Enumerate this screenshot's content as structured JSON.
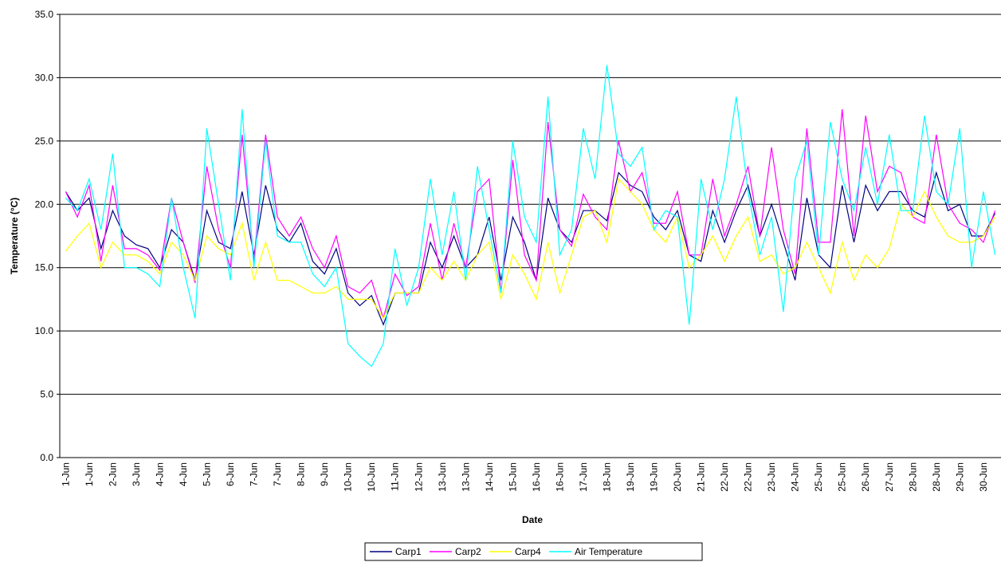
{
  "chart_data": {
    "type": "line",
    "y_label": "Temperature (°C)",
    "x_label": "Date",
    "categories": [
      "1-Jun",
      null,
      "1-Jun",
      null,
      "2-Jun",
      null,
      "3-Jun",
      null,
      "4-Jun",
      null,
      "4-Jun",
      null,
      "5-Jun",
      null,
      "6-Jun",
      null,
      "7-Jun",
      null,
      "7-Jun",
      null,
      "8-Jun",
      null,
      "9-Jun",
      null,
      "10-Jun",
      null,
      "10-Jun",
      null,
      "11-Jun",
      null,
      "12-Jun",
      null,
      "13-Jun",
      null,
      "13-Jun",
      null,
      "14-Jun",
      null,
      "15-Jun",
      null,
      "16-Jun",
      null,
      "16-Jun",
      null,
      "17-Jun",
      null,
      "18-Jun",
      null,
      "19-Jun",
      null,
      "19-Jun",
      null,
      "20-Jun",
      null,
      "21-Jun",
      null,
      "22-Jun",
      null,
      "22-Jun",
      null,
      "23-Jun",
      null,
      "24-Jun",
      null,
      "25-Jun",
      null,
      "25-Jun",
      null,
      "26-Jun",
      null,
      "27-Jun",
      null,
      "28-Jun",
      null,
      "28-Jun",
      null,
      "29-Jun",
      null,
      "30-Jun",
      null
    ],
    "series": [
      {
        "name": "Carp1",
        "color": "#000080",
        "values": [
          21,
          19.5,
          20.5,
          16.5,
          19.5,
          17.5,
          16.8,
          16.5,
          15,
          18,
          17,
          14,
          19.5,
          17,
          16.5,
          21,
          16,
          21.5,
          18,
          17,
          18.5,
          15.5,
          14.5,
          16.5,
          13,
          12,
          12.8,
          10.5,
          13,
          13,
          13,
          17,
          15,
          17.5,
          15,
          16,
          19,
          14,
          19,
          17,
          14,
          20.5,
          18,
          17,
          19.5,
          19.5,
          18.7,
          22.5,
          21.5,
          21,
          19,
          18,
          19.5,
          16,
          15.5,
          19.5,
          17,
          19.5,
          21.5,
          17.5,
          20,
          17,
          14,
          20.5,
          16,
          15,
          21.5,
          17,
          21.5,
          19.5,
          21,
          21,
          19.5,
          19,
          22.5,
          19.5,
          20,
          17.5,
          17.5,
          19.3
        ]
      },
      {
        "name": "Carp2",
        "color": "#ff00ff",
        "values": [
          21,
          19,
          21.5,
          15.5,
          21.5,
          16.5,
          16.5,
          16,
          14.8,
          20.5,
          17,
          13.8,
          23,
          18,
          15,
          25.5,
          15.5,
          25.5,
          19,
          17.5,
          19,
          16.5,
          15,
          17.5,
          13.5,
          13,
          14,
          11,
          14.5,
          12.8,
          13.5,
          18.5,
          14,
          18.5,
          15,
          21,
          22,
          13,
          23.5,
          16,
          14,
          26.5,
          18,
          16.7,
          20.8,
          19,
          18,
          25,
          21,
          22.5,
          18.5,
          18.5,
          21,
          16,
          16,
          22,
          17.5,
          20,
          23,
          17.5,
          24.5,
          18,
          14.5,
          26,
          17,
          17,
          27.5,
          17.5,
          27,
          21,
          23,
          22.5,
          19,
          18.5,
          25.5,
          20,
          18.5,
          18,
          17,
          19.5
        ]
      },
      {
        "name": "Carp4",
        "color": "#ffff00",
        "values": [
          16.3,
          17.5,
          18.5,
          15,
          17,
          16,
          16,
          15.5,
          14.5,
          17,
          16,
          14,
          17.5,
          16.5,
          16,
          18.5,
          14,
          17,
          14,
          14,
          13.5,
          13,
          13,
          13.5,
          12.5,
          12.5,
          12.5,
          11,
          13,
          13,
          13,
          15,
          14,
          15.5,
          14,
          16,
          17,
          12.5,
          16,
          14.5,
          12.5,
          17,
          13,
          16,
          19,
          19.5,
          17,
          22,
          21,
          20,
          18,
          17,
          19,
          15,
          16,
          17.5,
          15.5,
          17.5,
          19,
          15.5,
          16,
          14.5,
          15,
          17,
          15,
          13,
          17,
          14,
          16,
          15,
          16.5,
          20,
          19,
          21,
          19,
          17.5,
          17,
          17,
          17.5,
          19
        ]
      },
      {
        "name": "Air Temperature",
        "color": "#00ffff",
        "values": [
          20.5,
          19.5,
          22,
          18,
          24,
          15,
          15,
          14.5,
          13.5,
          20.5,
          15,
          11,
          26,
          20,
          14,
          27.5,
          15,
          25,
          17.5,
          17,
          17,
          14.5,
          13.5,
          15,
          9,
          8,
          7.2,
          9,
          16.5,
          12,
          15,
          22,
          16,
          21,
          14,
          23,
          18,
          13,
          25,
          19,
          17,
          28.5,
          16,
          18,
          26,
          22,
          31,
          24,
          23,
          24.5,
          18,
          19.5,
          19,
          10.5,
          22,
          18,
          22,
          28.5,
          21,
          16,
          19,
          11.5,
          22,
          25,
          16,
          26.5,
          22,
          19.5,
          24.5,
          20,
          25.5,
          19.5,
          19.5,
          27,
          21,
          20,
          26,
          15,
          21,
          16
        ]
      }
    ],
    "ylim": [
      0,
      35
    ],
    "yticks": [
      {
        "value": 0,
        "label": "0.0"
      },
      {
        "value": 5,
        "label": "5.0"
      },
      {
        "value": 10,
        "label": "10.0"
      },
      {
        "value": 15,
        "label": "15.0"
      },
      {
        "value": 20,
        "label": "20.0"
      },
      {
        "value": 25,
        "label": "25.0"
      },
      {
        "value": 30,
        "label": "30.0"
      },
      {
        "value": 35,
        "label": "35.0"
      }
    ],
    "grid": true
  }
}
